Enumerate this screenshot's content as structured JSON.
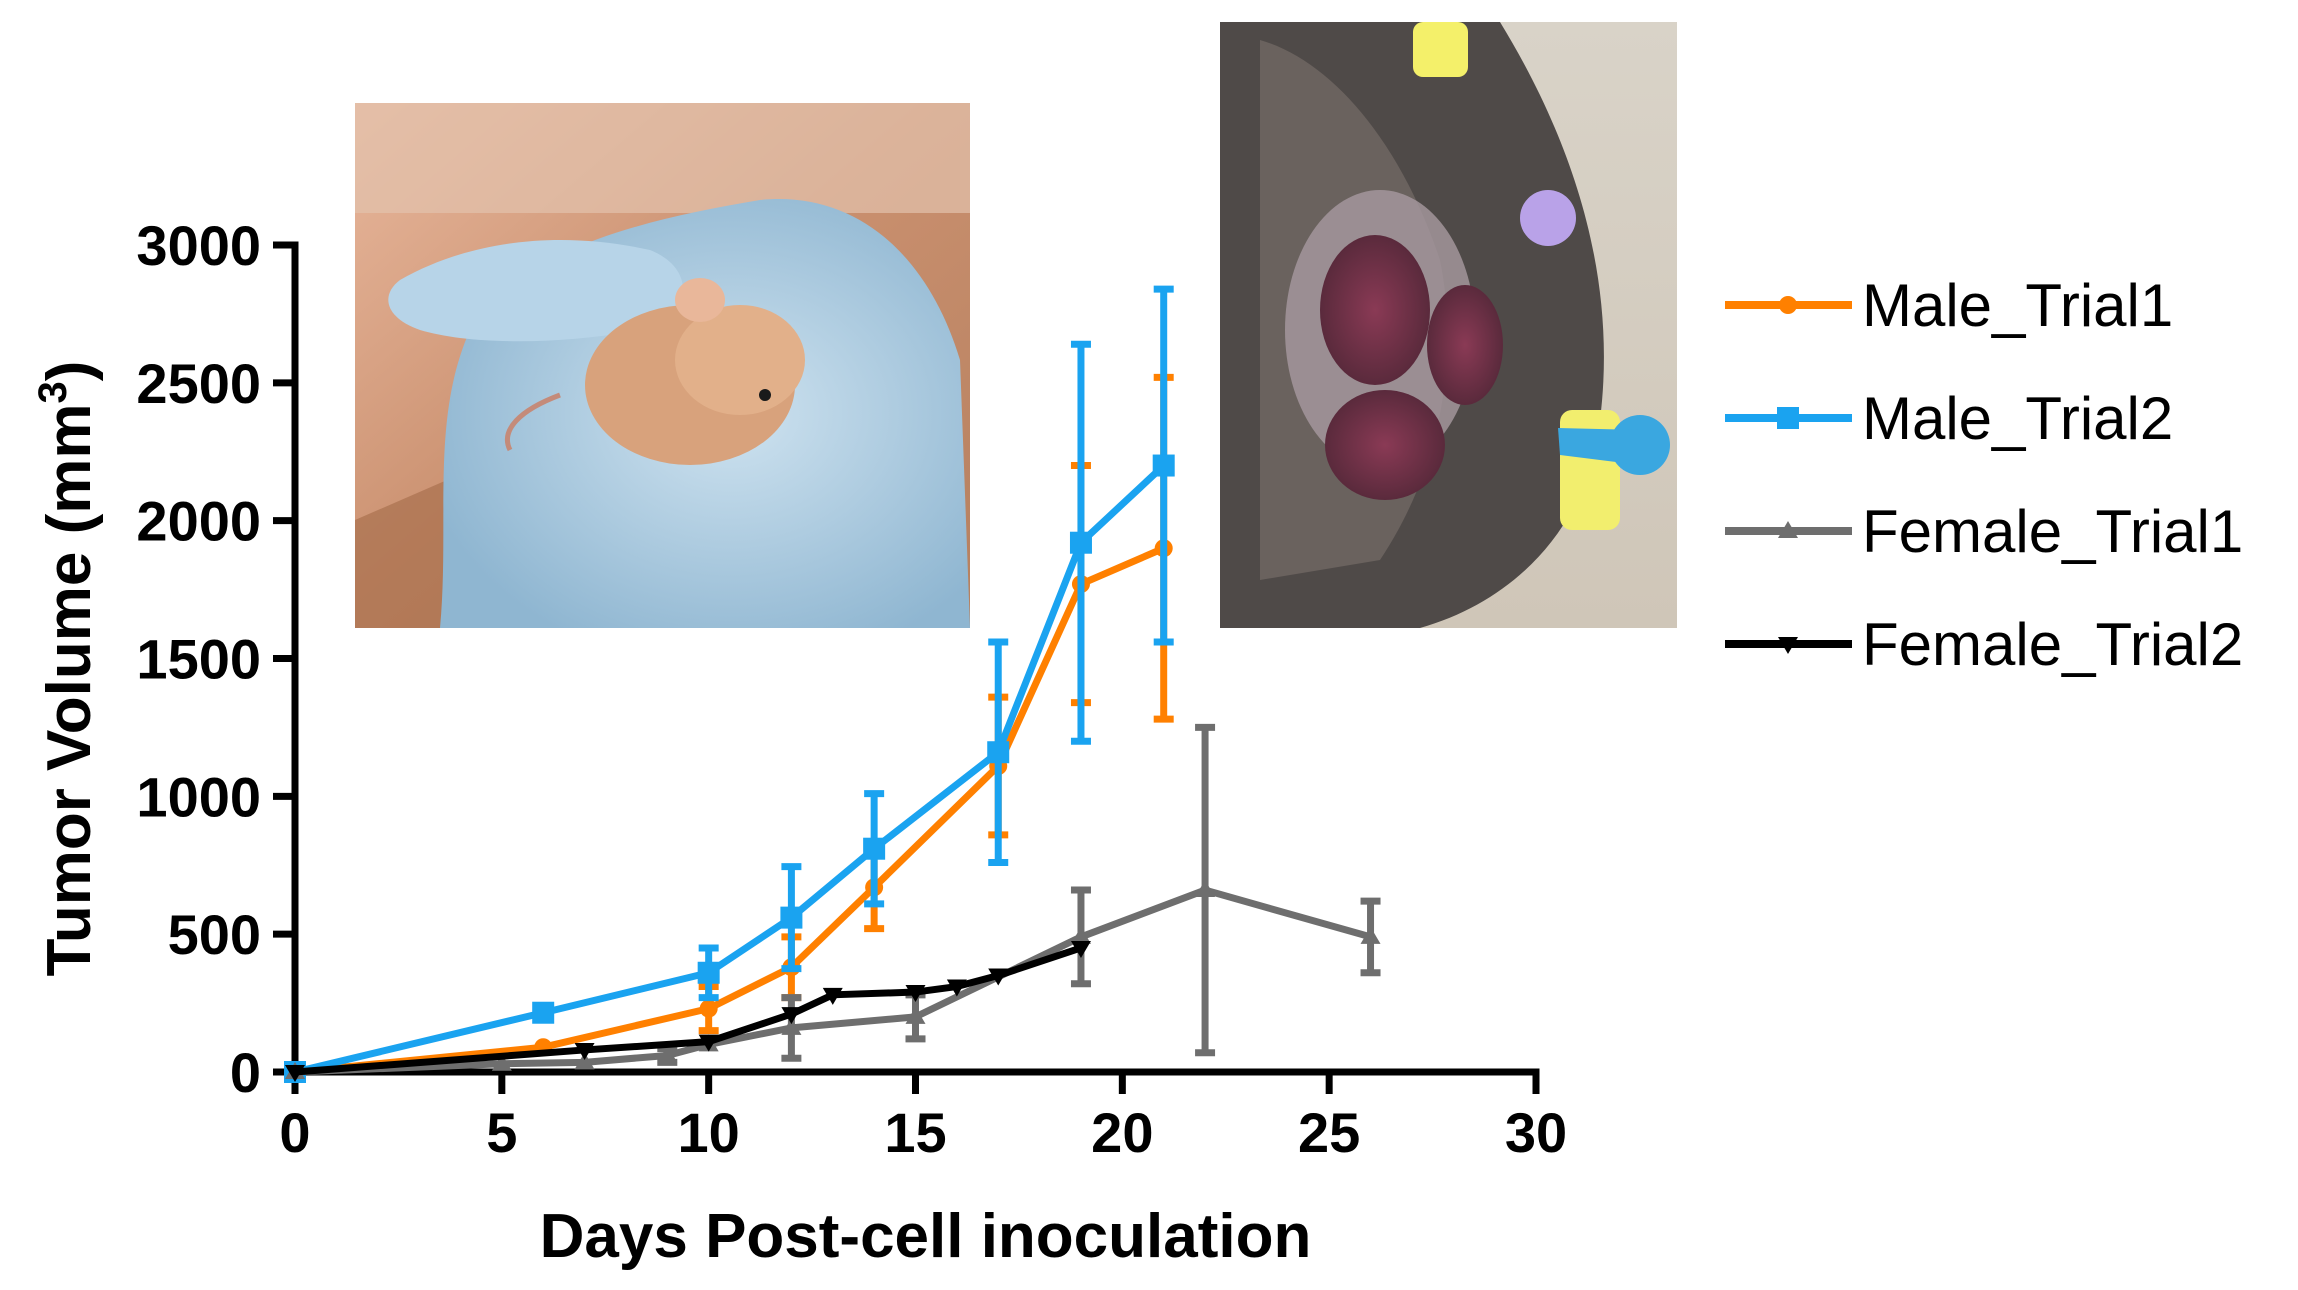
{
  "chart_data": {
    "type": "line",
    "title": "",
    "xlabel": "Days Post-cell inoculation",
    "ylabel_main": "Tumor Volume (mm",
    "ylabel_sup": "3",
    "ylabel_close": ")",
    "xlim": [
      0,
      30
    ],
    "ylim": [
      0,
      3000
    ],
    "xticks": [
      0,
      5,
      10,
      15,
      20,
      25,
      30
    ],
    "yticks": [
      0,
      500,
      1000,
      1500,
      2000,
      2500,
      3000
    ],
    "grid": false,
    "legend_position": "right",
    "series": [
      {
        "name": "Male_Trial1",
        "color": "#ff8000",
        "marker": "circle",
        "x": [
          0,
          6,
          10,
          12,
          14,
          17,
          19,
          21
        ],
        "y": [
          0,
          90,
          230,
          380,
          670,
          1110,
          1770,
          1900
        ],
        "err": [
          0,
          0,
          80,
          110,
          150,
          250,
          430,
          620
        ]
      },
      {
        "name": "Male_Trial2",
        "color": "#1aa3f0",
        "marker": "square",
        "x": [
          0,
          6,
          10,
          12,
          14,
          17,
          19,
          21
        ],
        "y": [
          0,
          215,
          360,
          560,
          810,
          1160,
          1920,
          2200
        ],
        "err": [
          0,
          15,
          90,
          185,
          200,
          400,
          720,
          640
        ]
      },
      {
        "name": "Female_Trial1",
        "color": "#6e6e6e",
        "marker": "triangle",
        "x": [
          0,
          5,
          7,
          9,
          10,
          12,
          15,
          19,
          22,
          26
        ],
        "y": [
          0,
          30,
          35,
          60,
          100,
          160,
          200,
          490,
          660,
          490
        ],
        "err": [
          0,
          0,
          0,
          25,
          0,
          110,
          80,
          170,
          590,
          130
        ]
      },
      {
        "name": "Female_Trial2",
        "color": "#000000",
        "marker": "triangle-down",
        "x": [
          0,
          7,
          10,
          12,
          13,
          15,
          16,
          17,
          19
        ],
        "y": [
          0,
          80,
          110,
          210,
          280,
          290,
          310,
          350,
          450
        ],
        "err": [
          0,
          0,
          0,
          0,
          0,
          0,
          0,
          0,
          0
        ]
      }
    ]
  }
}
